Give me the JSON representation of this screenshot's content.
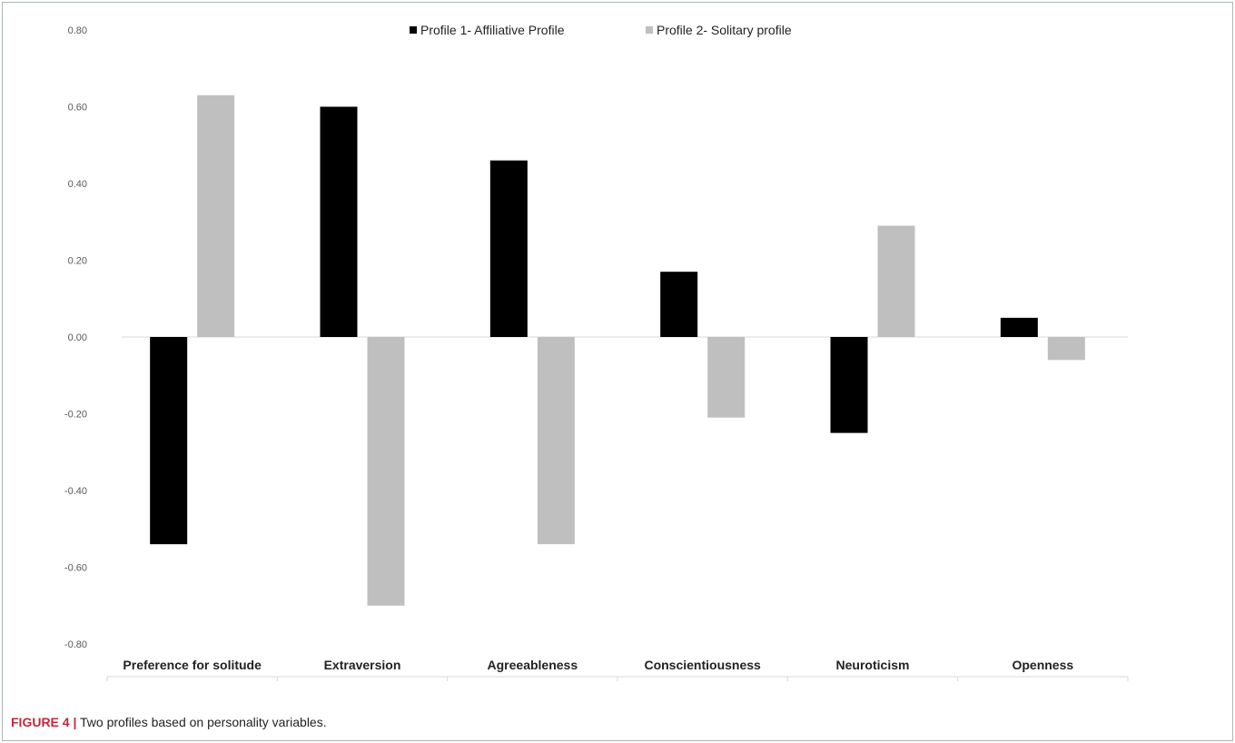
{
  "chart_data": {
    "type": "bar",
    "categories": [
      "Preference for solitude",
      "Extraversion",
      "Agreeableness",
      "Conscientiousness",
      "Neuroticism",
      "Openness"
    ],
    "series": [
      {
        "name": "Profile 1- Affiliative Profile",
        "values": [
          -0.54,
          0.6,
          0.46,
          0.17,
          -0.25,
          0.05
        ],
        "color": "#000000"
      },
      {
        "name": "Profile 2- Solitary profile",
        "values": [
          0.63,
          -0.7,
          -0.54,
          -0.21,
          0.29,
          -0.06
        ],
        "color": "#bfbfbf"
      }
    ],
    "ylim": [
      -0.8,
      0.8
    ],
    "yticks": [
      "0.80",
      "0.60",
      "0.40",
      "0.20",
      "0.00",
      "-0.20",
      "-0.40",
      "-0.60",
      "-0.80"
    ],
    "ytick_values": [
      0.8,
      0.6,
      0.4,
      0.2,
      0.0,
      -0.2,
      -0.4,
      -0.6,
      -0.8
    ],
    "legend_position": "top-center",
    "grid": false,
    "title": "",
    "xlabel": "",
    "ylabel": ""
  },
  "caption": {
    "label": "FIGURE 4 |",
    "text": " Two profiles based on personality variables."
  },
  "colors": {
    "frame": "#aeb4b8",
    "caption_label": "#c0283b"
  }
}
